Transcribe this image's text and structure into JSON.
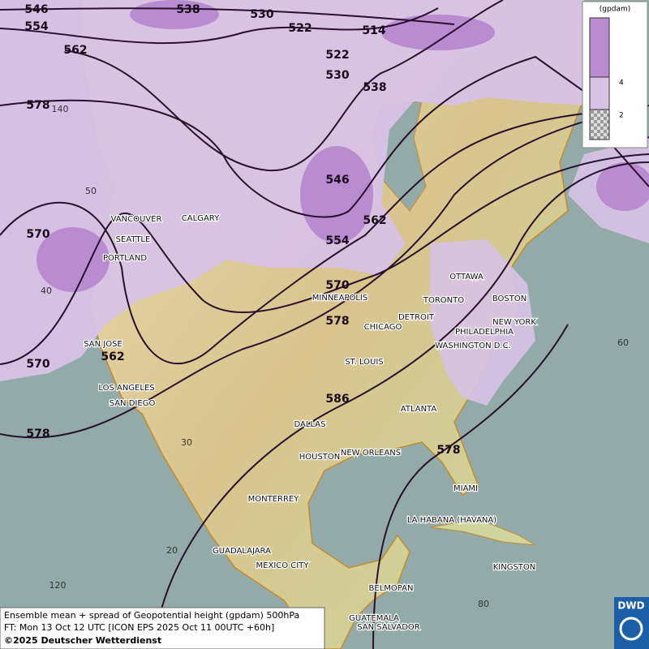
{
  "contour_labels": [
    "546",
    "554",
    "538",
    "530",
    "522",
    "514",
    "562",
    "522",
    "530",
    "538",
    "578",
    "546",
    "562",
    "554",
    "570",
    "570",
    "578",
    "562",
    "570",
    "586",
    "578",
    "578"
  ],
  "cities": [
    "VANCOUVER",
    "CALGARY",
    "SEATTLE",
    "PORTLAND",
    "MINNEAPOLIS",
    "OTTAWA",
    "TORONTO",
    "DETROIT",
    "BOSTON",
    "NEW YORK",
    "PHILADELPHIA",
    "WASHINGTON D.C.",
    "CHICAGO",
    "ST. LOUIS",
    "SAN JOSE",
    "LOS ANGELES",
    "SAN DIEGO",
    "ATLANTA",
    "DALLAS",
    "HOUSTON",
    "NEW ORLEANS",
    "MIAMI",
    "MONTERREY",
    "LA HABANA (HAVANA)",
    "GUADALAJARA",
    "MEXICO CITY",
    "KINGSTON",
    "BELMOPAN",
    "GUATEMALA",
    "SAN SALVADOR"
  ],
  "graticule_labels": [
    "140",
    "50",
    "40",
    "30",
    "20",
    "120",
    "60",
    "80"
  ],
  "legend": {
    "unit": "(gpdam)",
    "labels": [
      "4",
      "2"
    ]
  },
  "footer": {
    "line1": "Ensemble mean + spread of Geopotential height (gpdam) 500hPa",
    "line2": "FT: Mon 13 Oct 12 UTC [ICON EPS 2025 Oct 11 00UTC +60h]",
    "line3": "©2025 Deutscher Wetterdienst"
  },
  "logo": "DWD"
}
